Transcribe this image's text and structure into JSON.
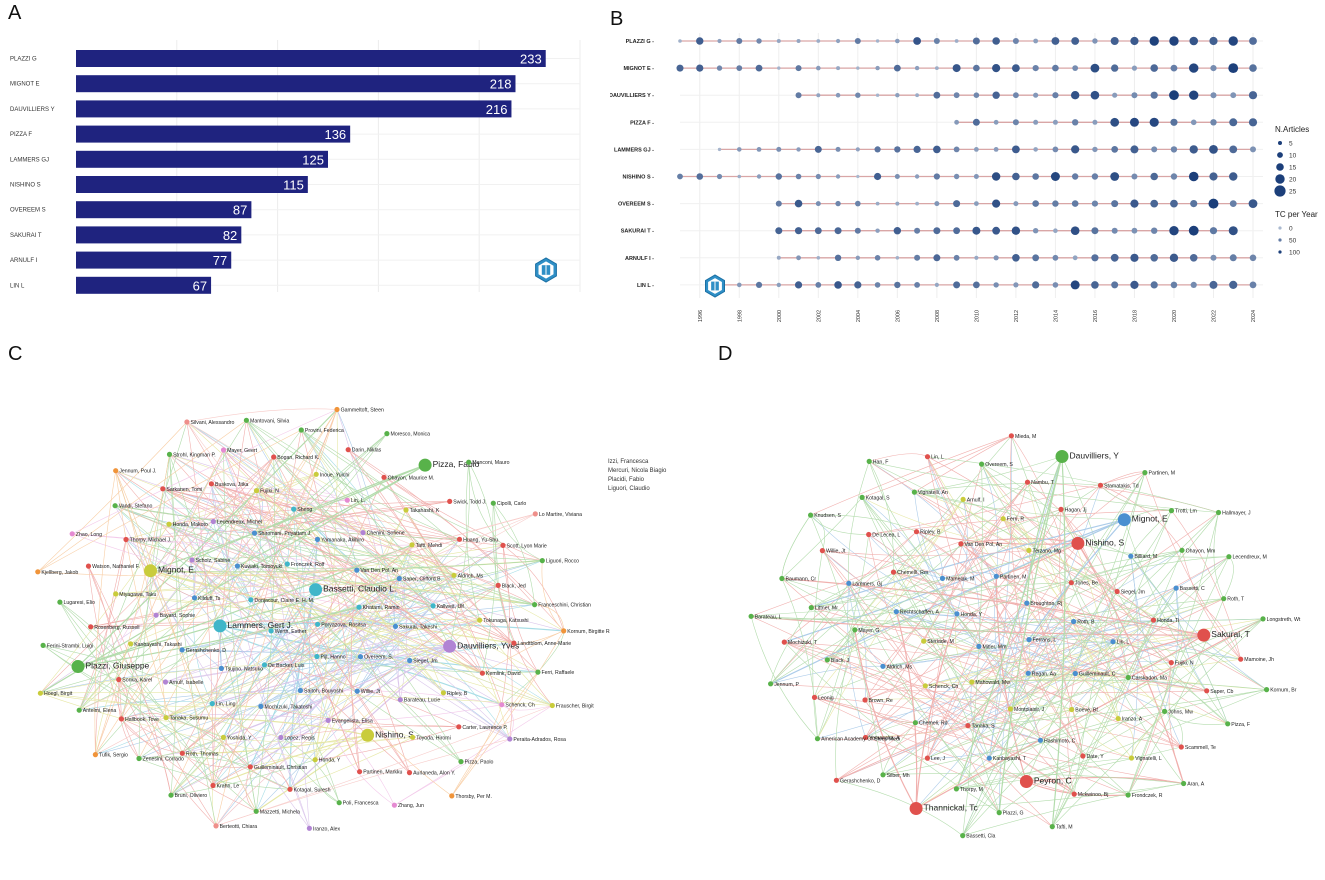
{
  "panels": {
    "A": "A",
    "B": "B",
    "C": "C",
    "D": "D"
  },
  "colors": {
    "bar": "#1f237f",
    "lollipop_line": "#d9a6a6",
    "dot_dark": "#1c3f7a",
    "dot_light": "#a9b8cf",
    "cluster_blue": "#4a8fd0",
    "cluster_cyan": "#3fb6c9",
    "cluster_purple": "#b184d4",
    "cluster_green": "#58b24a",
    "cluster_yellow": "#c9cc3c",
    "cluster_red": "#e0514d",
    "cluster_orange": "#f0943a",
    "cluster_pink": "#e58ad2",
    "cluster_salmon": "#ef8f8a"
  },
  "logo_icon": "bibliometrix-logo-icon",
  "chart_data": [
    {
      "type": "bar",
      "orientation": "horizontal",
      "categories": [
        "PLAZZI G",
        "MIGNOT E",
        "DAUVILLIERS Y",
        "PIZZA F",
        "LAMMERS GJ",
        "NISHINO S",
        "OVEREEM S",
        "SAKURAI T",
        "ARNULF I",
        "LIN L"
      ],
      "values": [
        233,
        218,
        216,
        136,
        125,
        115,
        87,
        82,
        77,
        67
      ],
      "xlim": [
        0,
        250
      ],
      "grid": true
    },
    {
      "type": "scatter",
      "authors": [
        "PLAZZI G",
        "MIGNOT E",
        "DAUVILLIERS Y",
        "PIZZA F",
        "LAMMERS GJ",
        "NISHINO S",
        "OVEREEM S",
        "SAKURAI T",
        "ARNULF I",
        "LIN L"
      ],
      "x_ticks": [
        "1996",
        "1998",
        "2000",
        "2002",
        "2004",
        "2006",
        "2008",
        "2010",
        "2012",
        "2014",
        "2016",
        "2018",
        "2020",
        "2022",
        "2024"
      ],
      "active_years": [
        [
          1995,
          2024
        ],
        [
          1995,
          2024
        ],
        [
          2001,
          2024
        ],
        [
          2009,
          2024
        ],
        [
          1997,
          2024
        ],
        [
          1995,
          2023
        ],
        [
          2000,
          2024
        ],
        [
          2000,
          2023
        ],
        [
          2000,
          2024
        ],
        [
          1997,
          2024
        ]
      ],
      "legend_articles_title": "N.Articles",
      "legend_articles": [
        "5",
        "10",
        "15",
        "20",
        "25"
      ],
      "legend_tc_title": "TC per Year",
      "legend_tc": [
        "0",
        "50",
        "100"
      ],
      "grid": true
    }
  ],
  "networkC": {
    "nodes": [
      {
        "label": "Poryazova, Rositsa",
        "c": "cluster_cyan"
      },
      {
        "label": "Werth, Esther",
        "c": "cluster_cyan"
      },
      {
        "label": "Bassetti, Claudio L.",
        "c": "cluster_cyan"
      },
      {
        "label": "Pijl, Hanno",
        "c": "cluster_cyan"
      },
      {
        "label": "Donjacour, Claire E. H. M.",
        "c": "cluster_cyan"
      },
      {
        "label": "Khatami, Ramin",
        "c": "cluster_cyan"
      },
      {
        "label": "De Backer, Luis",
        "c": "cluster_cyan"
      },
      {
        "label": "Fronczek, Rolf",
        "c": "cluster_cyan"
      },
      {
        "label": "Overeem, S.",
        "c": "cluster_blue"
      },
      {
        "label": "Lammers, Gert J.",
        "c": "cluster_cyan"
      },
      {
        "label": "Van Den Pol, An",
        "c": "cluster_blue"
      },
      {
        "label": "Saitoh, Bouyoshi",
        "c": "cluster_blue"
      },
      {
        "label": "Kuwaki, Tomoyuki",
        "c": "cluster_blue"
      },
      {
        "label": "Sakurai, Takeshi",
        "c": "cluster_blue"
      },
      {
        "label": "Tsujino, Natsuko",
        "c": "cluster_blue"
      },
      {
        "label": "Yamanaka, Akihiro",
        "c": "cluster_blue"
      },
      {
        "label": "Willie, Jt",
        "c": "cluster_blue"
      },
      {
        "label": "Kilduff, Ts",
        "c": "cluster_blue"
      },
      {
        "label": "Saper, Clifford B.",
        "c": "cluster_blue"
      },
      {
        "label": "Mochizuki, Takatoshi",
        "c": "cluster_blue"
      },
      {
        "label": "Shiromani, Priyattam J.",
        "c": "cluster_blue"
      },
      {
        "label": "Siegel, Jm",
        "c": "cluster_blue"
      },
      {
        "label": "Gerashchenko, D",
        "c": "cluster_blue"
      },
      {
        "label": "Chenini, Sofiene",
        "c": "cluster_purple"
      },
      {
        "label": "Evangelista, Elisa",
        "c": "cluster_purple"
      },
      {
        "label": "Scholz, Sabine",
        "c": "cluster_purple"
      },
      {
        "label": "Kallweit, Ulf",
        "c": "cluster_cyan"
      },
      {
        "label": "Lin, Ling",
        "c": "cluster_cyan"
      },
      {
        "label": "Sheng",
        "c": "cluster_cyan"
      },
      {
        "label": "Barateau, Lucie",
        "c": "cluster_purple"
      },
      {
        "label": "Bayard, Sophie",
        "c": "cluster_purple"
      },
      {
        "label": "Tafti, Mehdi",
        "c": "cluster_yellow"
      },
      {
        "label": "Lopez, Regis",
        "c": "cluster_purple"
      },
      {
        "label": "Lecendreux, Michel",
        "c": "cluster_purple"
      },
      {
        "label": "Dauvilliers, Yves",
        "c": "cluster_purple"
      },
      {
        "label": "Arnulf, Isabelle",
        "c": "cluster_purple"
      },
      {
        "label": "Lin, L.",
        "c": "cluster_pink"
      },
      {
        "label": "Nishino, S.",
        "c": "cluster_yellow"
      },
      {
        "label": "Mignot, E.",
        "c": "cluster_yellow"
      },
      {
        "label": "Aldrich, Ms",
        "c": "cluster_yellow"
      },
      {
        "label": "Yoshida, Y",
        "c": "cluster_yellow"
      },
      {
        "label": "Fujiki, N",
        "c": "cluster_yellow"
      },
      {
        "label": "Ripley, B",
        "c": "cluster_yellow"
      },
      {
        "label": "Kanbayashi, Takashi",
        "c": "cluster_yellow"
      },
      {
        "label": "Takahashi, K",
        "c": "cluster_yellow"
      },
      {
        "label": "Honda, Y",
        "c": "cluster_yellow"
      },
      {
        "label": "Honda, Makoto",
        "c": "cluster_yellow"
      },
      {
        "label": "Tokunaga, Katsushi",
        "c": "cluster_yellow"
      },
      {
        "label": "Tanaka, Susumu",
        "c": "cluster_yellow"
      },
      {
        "label": "Inoue, Yuichi",
        "c": "cluster_yellow"
      },
      {
        "label": "Toyoda, Hiromi",
        "c": "cluster_yellow"
      },
      {
        "label": "Miyagawa, Taku",
        "c": "cluster_yellow"
      },
      {
        "label": "Huang, Yu-Shu",
        "c": "cluster_red"
      },
      {
        "label": "Guilleminault, Christian",
        "c": "cluster_red"
      },
      {
        "label": "Buskova, Jitka",
        "c": "cluster_red"
      },
      {
        "label": "Kemlink, David",
        "c": "cluster_red"
      },
      {
        "label": "Sonka, Karel",
        "c": "cluster_red"
      },
      {
        "label": "Ohayon, Maurice M.",
        "c": "cluster_red"
      },
      {
        "label": "Partinen, Markku",
        "c": "cluster_red"
      },
      {
        "label": "Thorpy, Michael J.",
        "c": "cluster_red"
      },
      {
        "label": "Black, Jed",
        "c": "cluster_red"
      },
      {
        "label": "Roth, Thomas",
        "c": "cluster_red"
      },
      {
        "label": "Bogan, Richard K.",
        "c": "cluster_red"
      },
      {
        "label": "Carter, Lawrence P.",
        "c": "cluster_red"
      },
      {
        "label": "Rosenberg, Russell",
        "c": "cluster_red"
      },
      {
        "label": "Swick, Todd J.",
        "c": "cluster_red"
      },
      {
        "label": "Kotagal, Suresh",
        "c": "cluster_red"
      },
      {
        "label": "Sarkanen, Tomi",
        "c": "cluster_red"
      },
      {
        "label": "Landtblom, Anne-Marie",
        "c": "cluster_red"
      },
      {
        "label": "Hallbook, Tove",
        "c": "cluster_red"
      },
      {
        "label": "Darin, Niklas",
        "c": "cluster_red"
      },
      {
        "label": "Aurlaneda, Alon Y.",
        "c": "cluster_red"
      },
      {
        "label": "Watson, Nathaniel F.",
        "c": "cluster_red"
      },
      {
        "label": "Scott, Lyon Marie",
        "c": "cluster_red"
      },
      {
        "label": "Krahn, Le",
        "c": "cluster_red"
      },
      {
        "label": "Mayer, Geert",
        "c": "cluster_pink"
      },
      {
        "label": "Schenck, Ch",
        "c": "cluster_pink"
      },
      {
        "label": "Plazzi, Giuseppe",
        "c": "cluster_green"
      },
      {
        "label": "Pizza, Fabio",
        "c": "cluster_green"
      },
      {
        "label": "Poli, Francesca",
        "c": "cluster_green"
      },
      {
        "label": "Vandi, Stefano",
        "c": "cluster_green"
      },
      {
        "label": "Franceschini, Christian",
        "c": "cluster_green"
      },
      {
        "label": "Zenesini, Corrado",
        "c": "cluster_green"
      },
      {
        "label": "Provini, Federica",
        "c": "cluster_green"
      },
      {
        "label": "Pizza, Paolo",
        "c": "cluster_green"
      },
      {
        "label": "Lugaresi, Elio",
        "c": "cluster_green"
      },
      {
        "label": "Cipolli, Carlo",
        "c": "cluster_green"
      },
      {
        "label": "Mazzetti, Michela",
        "c": "cluster_green"
      },
      {
        "label": "Strohl, Kingman P.",
        "c": "cluster_green"
      },
      {
        "label": "Ferri, Raffaele",
        "c": "cluster_green"
      },
      {
        "label": "Antelmi, Elena",
        "c": "cluster_green"
      },
      {
        "label": "Moresco, Monica",
        "c": "cluster_green"
      },
      {
        "label": "Zhang, Jun",
        "c": "cluster_pink"
      },
      {
        "label": "Zhao, Long",
        "c": "cluster_pink"
      },
      {
        "label": "Liguori, Rocco",
        "c": "cluster_green"
      },
      {
        "label": "Bruni, Oliviero",
        "c": "cluster_green"
      },
      {
        "label": "Mantovani, Silvia",
        "c": "cluster_green"
      },
      {
        "label": "Peraita-Adrados, Rosa",
        "c": "cluster_purple"
      },
      {
        "label": "Ferini-Strambi, Luigi",
        "c": "cluster_green"
      },
      {
        "label": "Manconi, Mauro",
        "c": "cluster_green"
      },
      {
        "label": "Iranzo, Alex",
        "c": "cluster_purple"
      },
      {
        "label": "Jennum, Poul J.",
        "c": "cluster_orange"
      },
      {
        "label": "Kornum, Birgitte Rahbek",
        "c": "cluster_orange"
      },
      {
        "label": "Tufik, Sergio",
        "c": "cluster_orange"
      },
      {
        "label": "Gammeltoft, Steen",
        "c": "cluster_orange"
      },
      {
        "label": "Thorsby, Per M.",
        "c": "cluster_orange"
      },
      {
        "label": "Kjellberg, Jakob",
        "c": "cluster_orange"
      },
      {
        "label": "Lo Martire, Viviana",
        "c": "cluster_salmon"
      },
      {
        "label": "Berteotti, Chiara",
        "c": "cluster_salmon"
      },
      {
        "label": "Silvani, Alessandro",
        "c": "cluster_salmon"
      },
      {
        "label": "Frauscher, Birgit",
        "c": "cluster_yellow"
      },
      {
        "label": "Hoegl, Birgit",
        "c": "cluster_yellow"
      }
    ],
    "isolated": [
      "Izzi, Francesca",
      "Mercuri, Nicola Biagio",
      "Placidi, Fabio",
      "Liguori, Claudio"
    ]
  },
  "networkD": {
    "nodes": [
      {
        "label": "Ferrans, L",
        "c": "cluster_blue"
      },
      {
        "label": "Mitler, Mm",
        "c": "cluster_blue"
      },
      {
        "label": "Broughton, Rj",
        "c": "cluster_blue"
      },
      {
        "label": "Regan, Aa",
        "c": "cluster_blue"
      },
      {
        "label": "Honda, Y",
        "c": "cluster_blue"
      },
      {
        "label": "Roth, B",
        "c": "cluster_blue"
      },
      {
        "label": "Mahowald, Mw",
        "c": "cluster_yellow"
      },
      {
        "label": "Partinen, M",
        "c": "cluster_blue"
      },
      {
        "label": "Guilleminault, C",
        "c": "cluster_blue"
      },
      {
        "label": "Steriade, M",
        "c": "cluster_yellow"
      },
      {
        "label": "Jones, Be",
        "c": "cluster_red"
      },
      {
        "label": "Montplaisir, J",
        "c": "cluster_yellow"
      },
      {
        "label": "Mamelak, M",
        "c": "cluster_blue"
      },
      {
        "label": "Lin, L",
        "c": "cluster_blue"
      },
      {
        "label": "Schenck, Ch",
        "c": "cluster_yellow"
      },
      {
        "label": "Terzano, Mg",
        "c": "cluster_yellow"
      },
      {
        "label": "Boeve, Bf",
        "c": "cluster_yellow"
      },
      {
        "label": "Rechtschaffen, A",
        "c": "cluster_blue"
      },
      {
        "label": "Siegel, Jm",
        "c": "cluster_red"
      },
      {
        "label": "Tanaka, S",
        "c": "cluster_red"
      },
      {
        "label": "Van Den Pol, An",
        "c": "cluster_red"
      },
      {
        "label": "Carskadon, Ma",
        "c": "cluster_green"
      },
      {
        "label": "Aldrich, Ms",
        "c": "cluster_blue"
      },
      {
        "label": "Nishino, S",
        "c": "cluster_red"
      },
      {
        "label": "Hashimoto, C",
        "c": "cluster_blue"
      },
      {
        "label": "Chemelli, Rm",
        "c": "cluster_red"
      },
      {
        "label": "Honda, Ti",
        "c": "cluster_red"
      },
      {
        "label": "Chemeli, Rd",
        "c": "cluster_green"
      },
      {
        "label": "Ferri, R",
        "c": "cluster_yellow"
      },
      {
        "label": "Iranzo, A",
        "c": "cluster_yellow"
      },
      {
        "label": "Mayer, G",
        "c": "cluster_green"
      },
      {
        "label": "Billiard, M",
        "c": "cluster_blue"
      },
      {
        "label": "Kanbayashi, T",
        "c": "cluster_blue"
      },
      {
        "label": "Ripley, B",
        "c": "cluster_red"
      },
      {
        "label": "Fujiki, N",
        "c": "cluster_red"
      },
      {
        "label": "Brown, Re",
        "c": "cluster_red"
      },
      {
        "label": "Hagan, Jj",
        "c": "cluster_red"
      },
      {
        "label": "Date, Y",
        "c": "cluster_red"
      },
      {
        "label": "Lammers, Gj",
        "c": "cluster_blue"
      },
      {
        "label": "Bassetti, C",
        "c": "cluster_blue"
      },
      {
        "label": "Lee, J",
        "c": "cluster_red"
      },
      {
        "label": "Arnulf, I",
        "c": "cluster_yellow"
      },
      {
        "label": "Johns, Mw",
        "c": "cluster_green"
      },
      {
        "label": "Black, J",
        "c": "cluster_green"
      },
      {
        "label": "Mignot, E",
        "c": "cluster_blue"
      },
      {
        "label": "Peyron, C",
        "c": "cluster_red"
      },
      {
        "label": "De Lecea, L",
        "c": "cluster_red"
      },
      {
        "label": "Sakurai, T",
        "c": "cluster_red"
      },
      {
        "label": "Yamanaka, A",
        "c": "cluster_red"
      },
      {
        "label": "Nambu, T",
        "c": "cluster_red"
      },
      {
        "label": "Vignatelli, L",
        "c": "cluster_yellow"
      },
      {
        "label": "Littner, Mr",
        "c": "cluster_green"
      },
      {
        "label": "Ohayon, Mm",
        "c": "cluster_green"
      },
      {
        "label": "Thorpy, M",
        "c": "cluster_green"
      },
      {
        "label": "Vignatelli, An",
        "c": "cluster_green"
      },
      {
        "label": "Saper, Cb",
        "c": "cluster_red"
      },
      {
        "label": "Leonig",
        "c": "cluster_red"
      },
      {
        "label": "Stamatakis, Td",
        "c": "cluster_red"
      },
      {
        "label": "Mckwinoo, Bj",
        "c": "cluster_red"
      },
      {
        "label": "Willie, Jt",
        "c": "cluster_red"
      },
      {
        "label": "Roth, T",
        "c": "cluster_green"
      },
      {
        "label": "Silber, Mh",
        "c": "cluster_green"
      },
      {
        "label": "Overeem, S",
        "c": "cluster_green"
      },
      {
        "label": "Scammell, Te",
        "c": "cluster_red"
      },
      {
        "label": "Mochizuki, T",
        "c": "cluster_red"
      },
      {
        "label": "Trotti, Lm",
        "c": "cluster_green"
      },
      {
        "label": "Plazzi, G",
        "c": "cluster_green"
      },
      {
        "label": "Kotagal, S",
        "c": "cluster_green"
      },
      {
        "label": "Mamoine, Jh",
        "c": "cluster_red"
      },
      {
        "label": "American Academy Of Sleep Medi",
        "c": "cluster_green"
      },
      {
        "label": "Dauvilliers, Y",
        "c": "cluster_green"
      },
      {
        "label": "Frondczek, R",
        "c": "cluster_green"
      },
      {
        "label": "Baumann, Cr",
        "c": "cluster_green"
      },
      {
        "label": "Lecendreux, M",
        "c": "cluster_green"
      },
      {
        "label": "Thannickal, Tc",
        "c": "cluster_red"
      },
      {
        "label": "Lin, L",
        "c": "cluster_red"
      },
      {
        "label": "Pizza, F",
        "c": "cluster_green"
      },
      {
        "label": "Jennum, P",
        "c": "cluster_green"
      },
      {
        "label": "Partinen, M",
        "c": "cluster_green"
      },
      {
        "label": "Tafti, M",
        "c": "cluster_green"
      },
      {
        "label": "Knudsen, S",
        "c": "cluster_green"
      },
      {
        "label": "Longstreth, Wt",
        "c": "cluster_green"
      },
      {
        "label": "Gerashchenko, D",
        "c": "cluster_red"
      },
      {
        "label": "Mieda, M",
        "c": "cluster_red"
      },
      {
        "label": "Aran, A",
        "c": "cluster_green"
      },
      {
        "label": "Barateau, L",
        "c": "cluster_green"
      },
      {
        "label": "Hallmayer, J",
        "c": "cluster_green"
      },
      {
        "label": "Bassetti, Cla",
        "c": "cluster_green"
      },
      {
        "label": "Han, F",
        "c": "cluster_green"
      },
      {
        "label": "Kornum, Br",
        "c": "cluster_green"
      }
    ]
  }
}
